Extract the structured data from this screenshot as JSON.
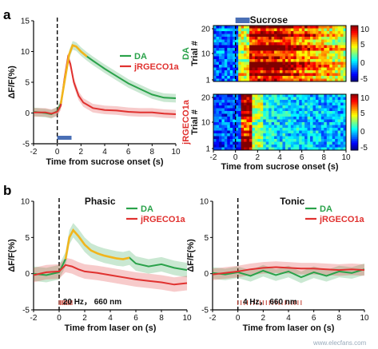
{
  "figure": {
    "panel_a_label": "a",
    "panel_b_label": "b",
    "watermark": "www.elecfans.com"
  },
  "colors": {
    "da": "#2aa24a",
    "jrgeco": "#e0312f",
    "overlap": "#f2b51c",
    "stim_bar": "#4a6fb5",
    "laser_ticks": "#c0392b"
  },
  "chart_data": [
    {
      "id": "a-trace",
      "type": "line",
      "title": "",
      "xlabel": "Time from sucrose onset (s)",
      "ylabel": "ΔF/F(%)",
      "xlim": [
        -2,
        10
      ],
      "ylim": [
        -5,
        15
      ],
      "xticks": [
        "-2",
        "0",
        "2",
        "4",
        "6",
        "8",
        "10"
      ],
      "yticks": [
        "-5",
        "0",
        "5",
        "10",
        "15"
      ],
      "series": [
        {
          "name": "DA",
          "x": [
            -2,
            -1,
            -0.5,
            0,
            0.3,
            0.6,
            1.0,
            1.3,
            1.6,
            2.0,
            2.5,
            3,
            4,
            5,
            6,
            7,
            8,
            9,
            10
          ],
          "y": [
            0.2,
            0.0,
            -0.2,
            0.3,
            1.5,
            5.0,
            9.5,
            11.0,
            10.8,
            10.0,
            9.2,
            8.5,
            7.2,
            6.0,
            4.8,
            3.9,
            3.0,
            2.5,
            2.4
          ]
        },
        {
          "name": "jRGECO1a",
          "x": [
            -2,
            -1,
            -0.5,
            0,
            0.3,
            0.6,
            0.9,
            1.1,
            1.4,
            1.8,
            2.2,
            3,
            4,
            5,
            6,
            7,
            8,
            9,
            10
          ],
          "y": [
            0.1,
            0.1,
            -0.1,
            0.2,
            1.2,
            5.5,
            9.0,
            8.0,
            5.0,
            2.8,
            1.7,
            0.8,
            0.5,
            0.4,
            0.2,
            0.1,
            0.1,
            -0.1,
            -0.2
          ]
        }
      ],
      "stimulus": {
        "start": 0,
        "end": 1
      }
    },
    {
      "id": "b-phasic",
      "type": "line",
      "title": "Phasic",
      "xlabel": "Time from laser on (s)",
      "ylabel": "ΔF/F(%)",
      "xlim": [
        -2,
        10
      ],
      "ylim": [
        -5,
        10
      ],
      "xticks": [
        "-2",
        "0",
        "2",
        "4",
        "6",
        "8",
        "10"
      ],
      "yticks": [
        "-5",
        "0",
        "5",
        "10"
      ],
      "stimulus_label": "20 Hz，  660 nm",
      "series": [
        {
          "name": "DA",
          "x": [
            -2,
            -1,
            0,
            0.5,
            0.8,
            1.1,
            1.5,
            2,
            2.5,
            3,
            3.5,
            4,
            4.5,
            5,
            5.5,
            6,
            7,
            8,
            9,
            10
          ],
          "y": [
            0.0,
            -0.2,
            0.2,
            2.0,
            5.0,
            6.0,
            5.2,
            4.0,
            3.2,
            2.8,
            2.5,
            2.3,
            2.1,
            2.0,
            2.2,
            1.4,
            1.0,
            1.3,
            0.8,
            0.5
          ]
        },
        {
          "name": "jRGECO1a",
          "x": [
            -2,
            -1,
            0,
            0.5,
            1,
            1.5,
            2,
            3,
            4,
            5,
            6,
            7,
            8,
            9,
            10
          ],
          "y": [
            -0.2,
            0.2,
            0.3,
            1.2,
            1.0,
            0.6,
            0.3,
            0.1,
            -0.2,
            -0.5,
            -0.8,
            -1.0,
            -1.2,
            -1.5,
            -1.3
          ]
        }
      ]
    },
    {
      "id": "b-tonic",
      "type": "line",
      "title": "Tonic",
      "xlabel": "Time from laser on (s)",
      "ylabel": "ΔF/F(%)",
      "xlim": [
        -2,
        10
      ],
      "ylim": [
        -5,
        10
      ],
      "xticks": [
        "-2",
        "0",
        "2",
        "4",
        "6",
        "8",
        "10"
      ],
      "yticks": [
        "-5",
        "0",
        "5",
        "10"
      ],
      "stimulus_label": "4 Hz，  660 nm",
      "series": [
        {
          "name": "DA",
          "x": [
            -2,
            -1,
            0,
            1,
            2,
            3,
            4,
            5,
            6,
            7,
            8,
            9,
            10
          ],
          "y": [
            0.1,
            -0.1,
            0.2,
            -0.3,
            0.4,
            -0.2,
            0.3,
            -0.5,
            0.2,
            -0.3,
            0.3,
            0.1,
            0.6
          ]
        },
        {
          "name": "jRGECO1a",
          "x": [
            -2,
            -1,
            0,
            1,
            2,
            3,
            4,
            5,
            6,
            7,
            8,
            9,
            10
          ],
          "y": [
            -0.1,
            0.1,
            0.3,
            0.6,
            0.8,
            0.9,
            0.8,
            0.7,
            0.7,
            0.6,
            0.5,
            0.6,
            0.5
          ]
        }
      ]
    },
    {
      "id": "a-heatmap-da",
      "type": "heatmap",
      "title": "Sucrose",
      "ylabel": "Trial #",
      "row_label": "DA",
      "xlim": [
        -2,
        10
      ],
      "yticks": [
        "1",
        "10",
        "20"
      ],
      "colorbar_ticks": [
        "10",
        "5",
        "0",
        "-5"
      ],
      "vmin": -5,
      "vmax": 10,
      "rows": 20,
      "stimulus": {
        "start": 0,
        "end": 1
      }
    },
    {
      "id": "a-heatmap-jrgeco",
      "type": "heatmap",
      "title": "",
      "xlabel": "Time from sucrose onset (s)",
      "ylabel": "Trial #",
      "row_label": "jRGECO1a",
      "xlim": [
        -2,
        10
      ],
      "xticks": [
        "-2",
        "0",
        "2",
        "4",
        "6",
        "8",
        "10"
      ],
      "yticks": [
        "1",
        "10",
        "20"
      ],
      "colorbar_ticks": [
        "10",
        "5",
        "0",
        "-5"
      ],
      "vmin": -5,
      "vmax": 10,
      "rows": 20
    }
  ]
}
